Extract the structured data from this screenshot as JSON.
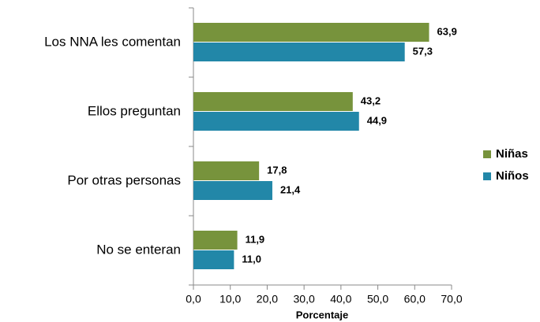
{
  "chart_data": {
    "type": "bar",
    "orientation": "horizontal",
    "x_label": "Porcentaje",
    "categories": [
      "Los NNA les comentan",
      "Ellos preguntan",
      "Por otras personas",
      "No se enteran"
    ],
    "series": [
      {
        "name": "Niñas",
        "color": "#77933c",
        "values": [
          63.9,
          43.2,
          17.8,
          11.9
        ],
        "value_labels": [
          "63,9",
          "43,2",
          "17,8",
          "11,9"
        ]
      },
      {
        "name": "Niños",
        "color": "#2287a8",
        "values": [
          57.3,
          44.9,
          21.4,
          11.0
        ],
        "value_labels": [
          "57,3",
          "44,9",
          "21,4",
          "11,0"
        ]
      }
    ],
    "xlim": [
      0,
      70
    ],
    "xticks": [
      {
        "value": 0,
        "label": "0,0"
      },
      {
        "value": 10,
        "label": "10,0"
      },
      {
        "value": 20,
        "label": "20,0"
      },
      {
        "value": 30,
        "label": "30,0"
      },
      {
        "value": 40,
        "label": "40,0"
      },
      {
        "value": 50,
        "label": "50,0"
      },
      {
        "value": 60,
        "label": "60,0"
      },
      {
        "value": 70,
        "label": "70,0"
      }
    ],
    "legend": "right"
  }
}
